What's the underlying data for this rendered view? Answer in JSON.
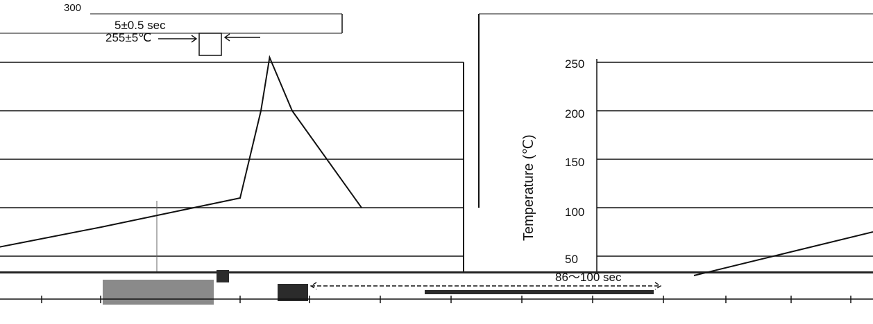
{
  "chart_data": [
    {
      "type": "line",
      "title": "",
      "ylabel": "",
      "xlabel": "",
      "ylim": [
        0,
        300
      ],
      "y_ticks": [
        "300"
      ],
      "grid": true,
      "series": [
        {
          "x": [
            -240,
            -200,
            -160,
            -120,
            -80,
            -40,
            0,
            12,
            17,
            30,
            70
          ],
          "y": [
            25,
            38,
            52,
            66,
            80,
            95,
            110,
            200,
            255,
            200,
            100
          ]
        }
      ],
      "annotations": [
        {
          "text": "5±0.5 sec"
        },
        {
          "text": "255±5℃"
        }
      ]
    },
    {
      "type": "line",
      "title": "",
      "xlabel": "",
      "ylabel": "Temperature (℃)",
      "ylim": [
        0,
        275
      ],
      "y_ticks": [
        "250",
        "200",
        "150",
        "100",
        "50"
      ],
      "grid": true,
      "series": [
        {
          "x": [
            86,
            146
          ],
          "y": [
            30,
            75
          ]
        }
      ],
      "annotations": [
        {
          "text": "86～100 sec"
        }
      ]
    }
  ]
}
